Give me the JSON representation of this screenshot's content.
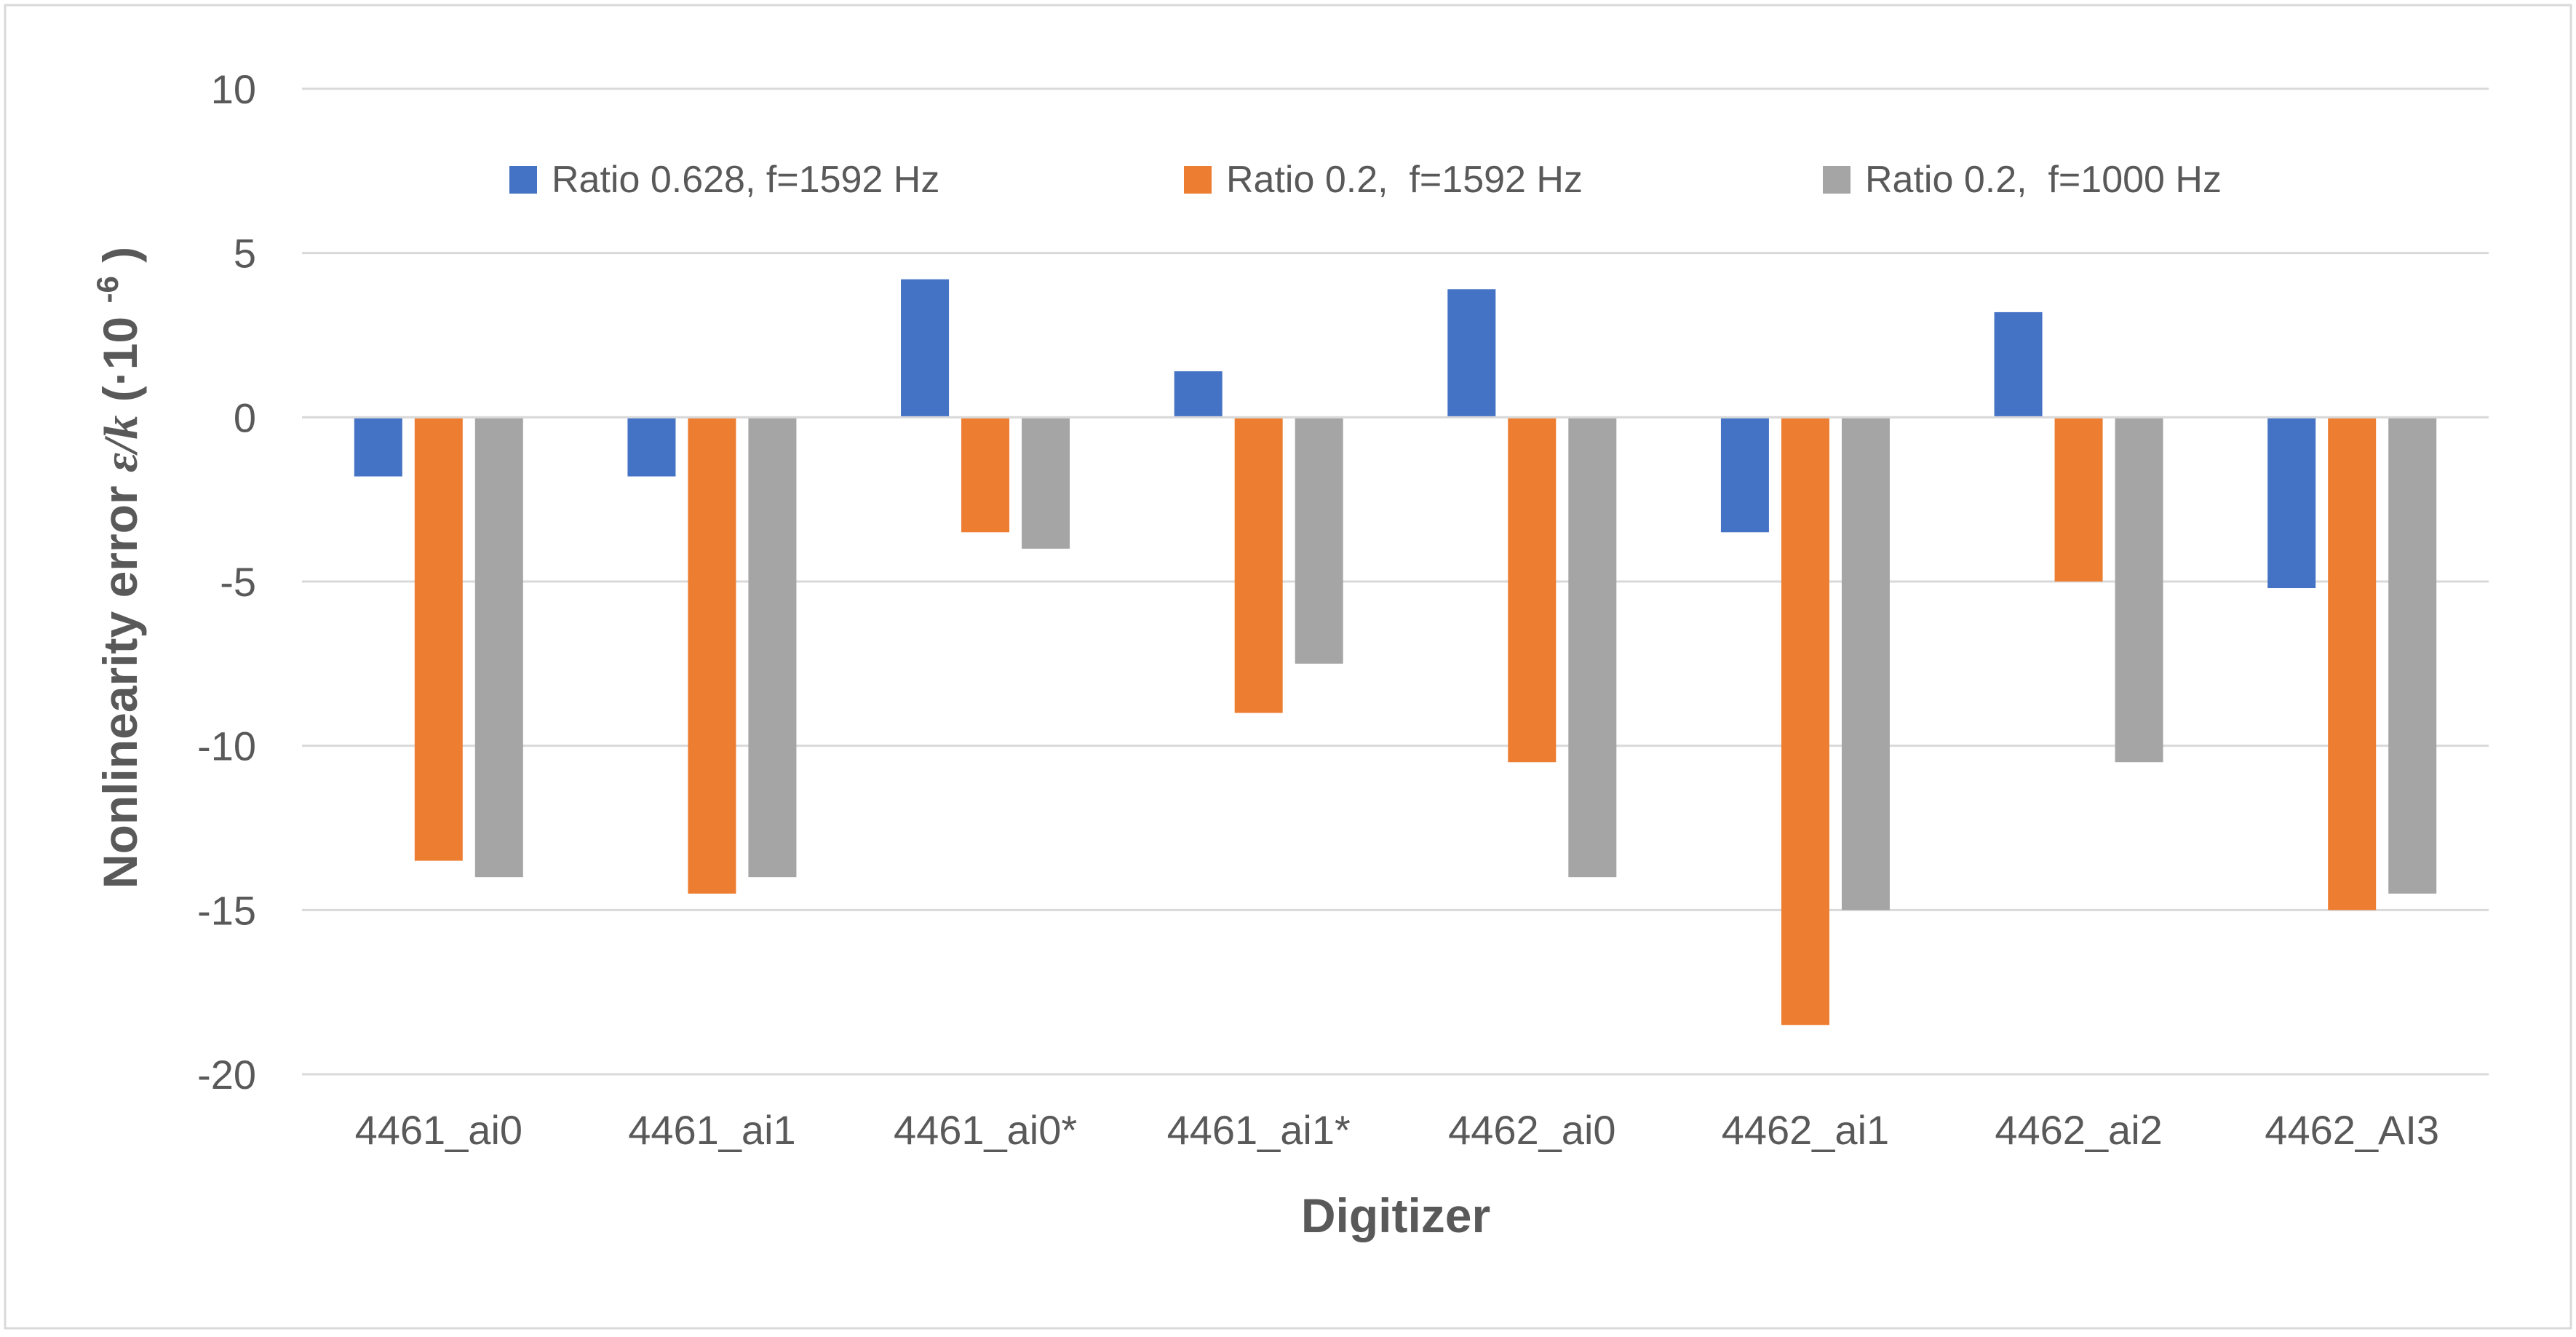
{
  "chart_data": {
    "type": "bar",
    "title": "",
    "xlabel": "Digitizer",
    "ylabel": "Nonlinearity error ε/k (·10⁻⁶)",
    "ylabel_main": "Nonlinearity error ",
    "ylabel_symbol": "ε/k",
    "ylabel_unit_open": " (·10",
    "ylabel_unit_exp": "-6",
    "ylabel_unit_close": ")",
    "ylim": [
      -20,
      10
    ],
    "yticks": [
      10,
      5,
      0,
      -5,
      -10,
      -15,
      -20
    ],
    "grid": true,
    "legend_position": "top",
    "categories": [
      "4461_ai0",
      "4461_ai1",
      "4461_ai0*",
      "4461_ai1*",
      "4462_ai0",
      "4462_ai1",
      "4462_ai2",
      "4462_AI3"
    ],
    "series": [
      {
        "name": "Ratio 0.628, f=1592 Hz",
        "color": "#4472C4",
        "values": [
          -1.8,
          -1.8,
          4.2,
          1.4,
          3.9,
          -3.5,
          3.2,
          -5.2
        ]
      },
      {
        "name": "Ratio 0.2,  f=1592 Hz",
        "color": "#ED7D31",
        "values": [
          -13.5,
          -14.5,
          -3.5,
          -9.0,
          -10.5,
          -18.5,
          -5.0,
          -15.0
        ]
      },
      {
        "name": "Ratio 0.2,  f=1000 Hz",
        "color": "#A5A5A5",
        "values": [
          -14.0,
          -14.0,
          -4.0,
          -7.5,
          -14.0,
          -15.0,
          -10.5,
          -14.5
        ]
      }
    ]
  }
}
